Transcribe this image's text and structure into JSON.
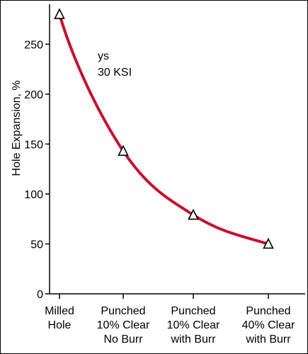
{
  "chart_data": {
    "type": "line",
    "ylabel": "Hole Expansion, %",
    "ylim": [
      0,
      290
    ],
    "yticks": [
      0,
      50,
      100,
      150,
      200,
      250
    ],
    "categories": [
      [
        "Milled",
        "Hole"
      ],
      [
        "Punched",
        "10% Clear",
        "No Burr"
      ],
      [
        "Punched",
        "10% Clear",
        "with Burr"
      ],
      [
        "Punched",
        "40% Clear",
        "with Burr"
      ]
    ],
    "series": [
      {
        "values": [
          280,
          143,
          79,
          50
        ],
        "color": "#c8102e",
        "marker": "open-triangle"
      }
    ],
    "annotations": [
      "ys",
      "30 KSI"
    ],
    "grid": false
  }
}
